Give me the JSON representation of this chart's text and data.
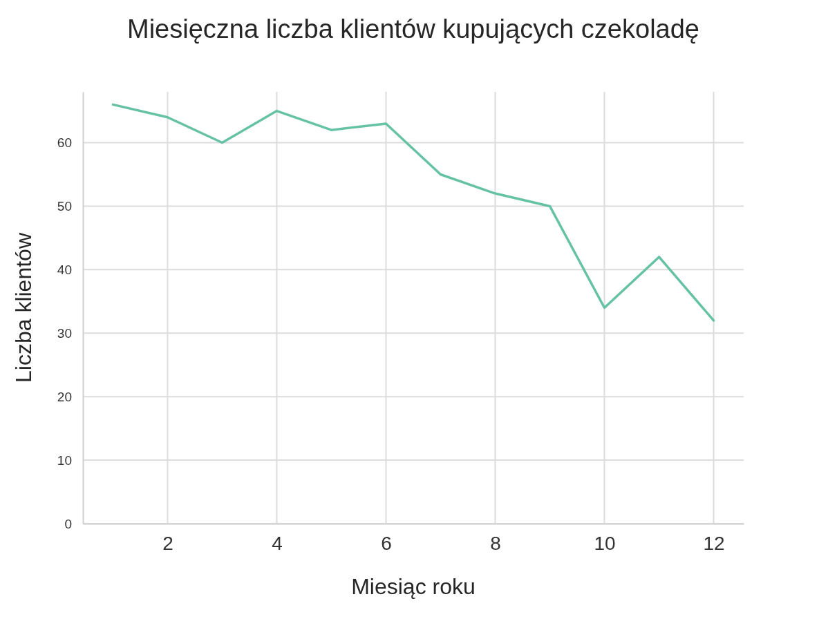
{
  "chart_data": {
    "type": "line",
    "title": "Miesięczna liczba klientów kupujących czekoladę",
    "xlabel": "Miesiąc roku",
    "ylabel": "Liczba klientów",
    "x": [
      1,
      2,
      3,
      4,
      5,
      6,
      7,
      8,
      9,
      10,
      11,
      12
    ],
    "series": [
      {
        "color": "#66c2a5",
        "values": [
          66,
          64,
          60,
          65,
          62,
          63,
          55,
          52,
          50,
          34,
          42,
          32
        ]
      }
    ],
    "xlim": [
      0.45,
      12.55
    ],
    "ylim": [
      0,
      68
    ],
    "xticks": [
      2,
      4,
      6,
      8,
      10,
      12
    ],
    "yticks": [
      0,
      10,
      20,
      30,
      40,
      50,
      60
    ],
    "grid": true,
    "marker": "none",
    "line_style": "solid"
  }
}
